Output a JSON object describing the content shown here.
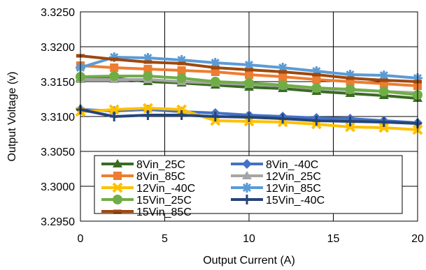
{
  "chart_data": {
    "type": "line",
    "title": "",
    "xlabel": "Output Current (A)",
    "ylabel": "Output Voltage (v)",
    "xlim": [
      0,
      20
    ],
    "ylim": [
      3.295,
      3.325
    ],
    "grid": true,
    "legend_position": "bottom-inside",
    "x_ticks": [
      "0",
      "5",
      "10",
      "15",
      "20"
    ],
    "y_ticks": [
      "3.2950",
      "3.3000",
      "3.3050",
      "3.3100",
      "3.3150",
      "3.3200",
      "3.3250"
    ],
    "x": [
      0,
      2,
      4,
      6,
      8,
      10,
      12,
      14,
      16,
      18,
      20
    ],
    "series": [
      {
        "name": "8Vin_25C",
        "color": "#3a6b24",
        "marker": "triangle",
        "values": [
          3.3155,
          3.3155,
          3.315,
          3.3148,
          3.3145,
          3.3142,
          3.314,
          3.3136,
          3.3133,
          3.313,
          3.3126
        ]
      },
      {
        "name": "8Vin_-40C",
        "color": "#4472c4",
        "marker": "diamond",
        "values": [
          3.311,
          3.3108,
          3.311,
          3.3107,
          3.3105,
          3.3102,
          3.31,
          3.3098,
          3.3097,
          3.3094,
          3.3091
        ]
      },
      {
        "name": "8Vin_85C",
        "color": "#ed7d31",
        "marker": "square",
        "values": [
          3.3173,
          3.317,
          3.3168,
          3.3166,
          3.3164,
          3.316,
          3.3157,
          3.3153,
          3.315,
          3.3147,
          3.3144
        ]
      },
      {
        "name": "12Vin_25C",
        "color": "#a5a5a5",
        "marker": "triangle",
        "values": [
          3.3153,
          3.3153,
          3.3153,
          3.315,
          3.3148,
          3.3146,
          3.3144,
          3.314,
          3.3138,
          3.3136,
          3.3134
        ]
      },
      {
        "name": "12Vin_-40C",
        "color": "#ffc000",
        "marker": "x",
        "values": [
          3.3107,
          3.311,
          3.3112,
          3.311,
          3.3094,
          3.3093,
          3.3092,
          3.3089,
          3.3085,
          3.3084,
          3.3081
        ]
      },
      {
        "name": "12Vin_85C",
        "color": "#5b9bd5",
        "marker": "star",
        "values": [
          3.317,
          3.3185,
          3.3184,
          3.3181,
          3.3177,
          3.3174,
          3.317,
          3.3165,
          3.316,
          3.3159,
          3.3155
        ]
      },
      {
        "name": "15Vin_25C",
        "color": "#70ad47",
        "marker": "circle",
        "values": [
          3.3157,
          3.3158,
          3.3158,
          3.3155,
          3.315,
          3.3148,
          3.3145,
          3.3141,
          3.3139,
          3.3136,
          3.3131
        ]
      },
      {
        "name": "15Vin_-40C",
        "color": "#264478",
        "marker": "plus",
        "values": [
          3.311,
          3.31,
          3.3102,
          3.3102,
          3.31,
          3.3099,
          3.3097,
          3.3094,
          3.3093,
          3.3092,
          3.309
        ]
      },
      {
        "name": "15Vin_85C",
        "color": "#9e480e",
        "marker": "dash",
        "values": [
          3.3187,
          3.3182,
          3.3178,
          3.3176,
          3.317,
          3.3167,
          3.3164,
          3.316,
          3.3155,
          3.3152,
          3.315
        ]
      }
    ]
  }
}
